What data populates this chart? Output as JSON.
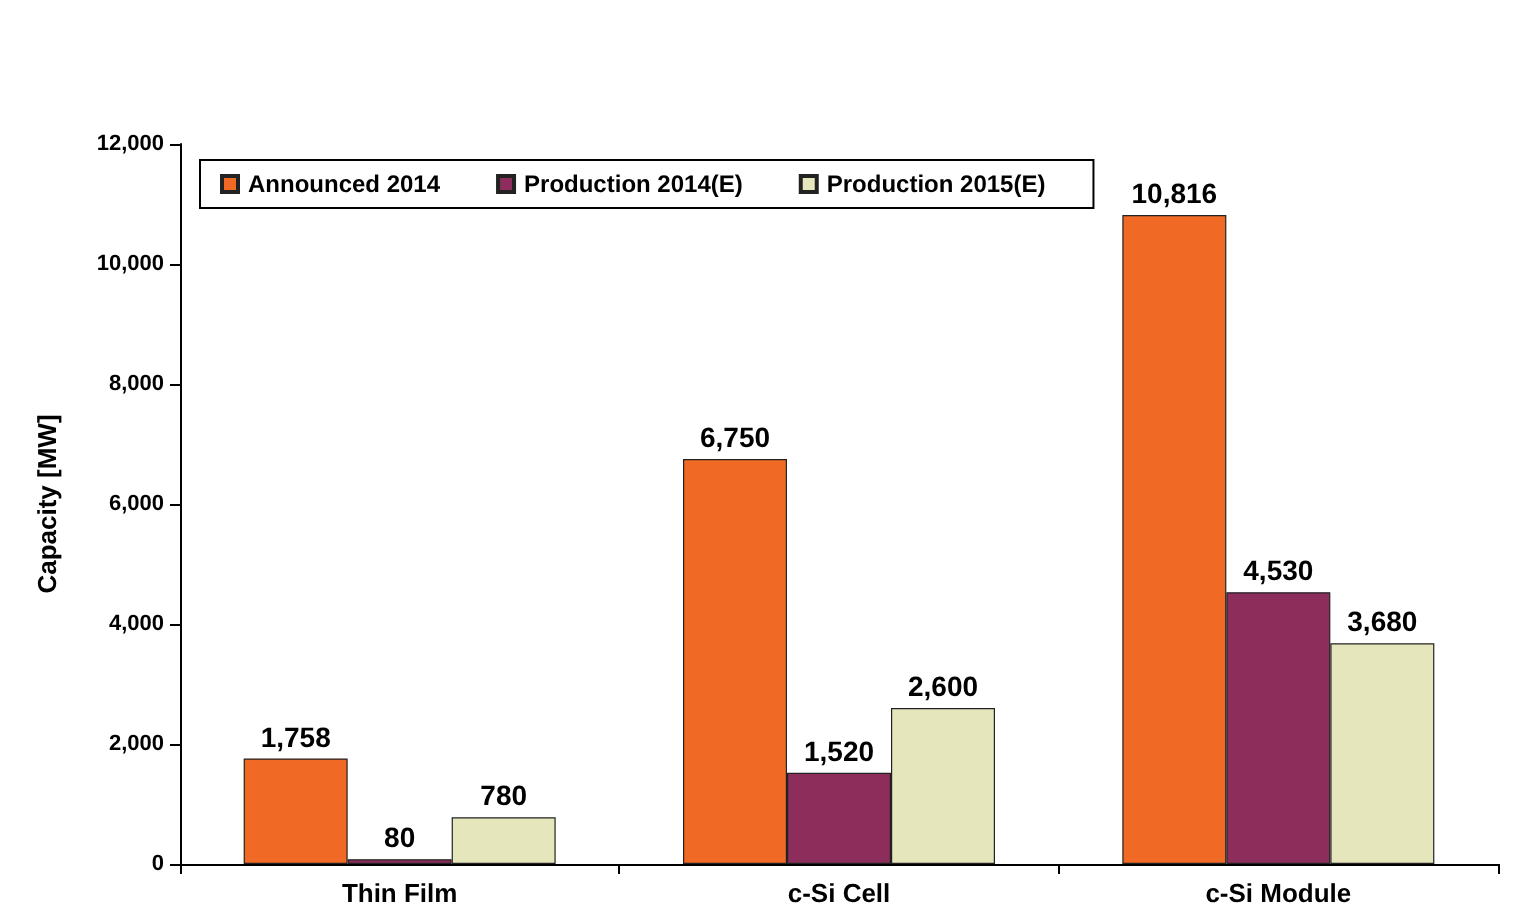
{
  "chart_data": {
    "type": "bar",
    "ylabel": "Capacity [MW]",
    "categories": [
      "Thin Film",
      "c-Si Cell",
      "c-Si Module"
    ],
    "series": [
      {
        "name": "Announced 2014",
        "color": "#f06a26",
        "values": [
          1758,
          6750,
          10816
        ],
        "value_labels": [
          "1,758",
          "6,750",
          "10,816"
        ]
      },
      {
        "name": "Production 2014(E)",
        "color": "#8c2d5c",
        "values": [
          80,
          1520,
          4530
        ],
        "value_labels": [
          "80",
          "1,520",
          "4,530"
        ]
      },
      {
        "name": "Production 2015(E)",
        "color": "#e6e6bc",
        "values": [
          780,
          2600,
          3680
        ],
        "value_labels": [
          "780",
          "2,600",
          "3,680"
        ]
      }
    ],
    "ylim": [
      0,
      12000
    ],
    "yticks": [
      {
        "value": 0,
        "label": "0"
      },
      {
        "value": 2000,
        "label": "2,000"
      },
      {
        "value": 4000,
        "label": "4,000"
      },
      {
        "value": 6000,
        "label": "6,000"
      },
      {
        "value": 8000,
        "label": "8,000"
      },
      {
        "value": 10000,
        "label": "10,000"
      },
      {
        "value": 12000,
        "label": "12,000"
      }
    ],
    "grid": false,
    "legend": "top"
  }
}
